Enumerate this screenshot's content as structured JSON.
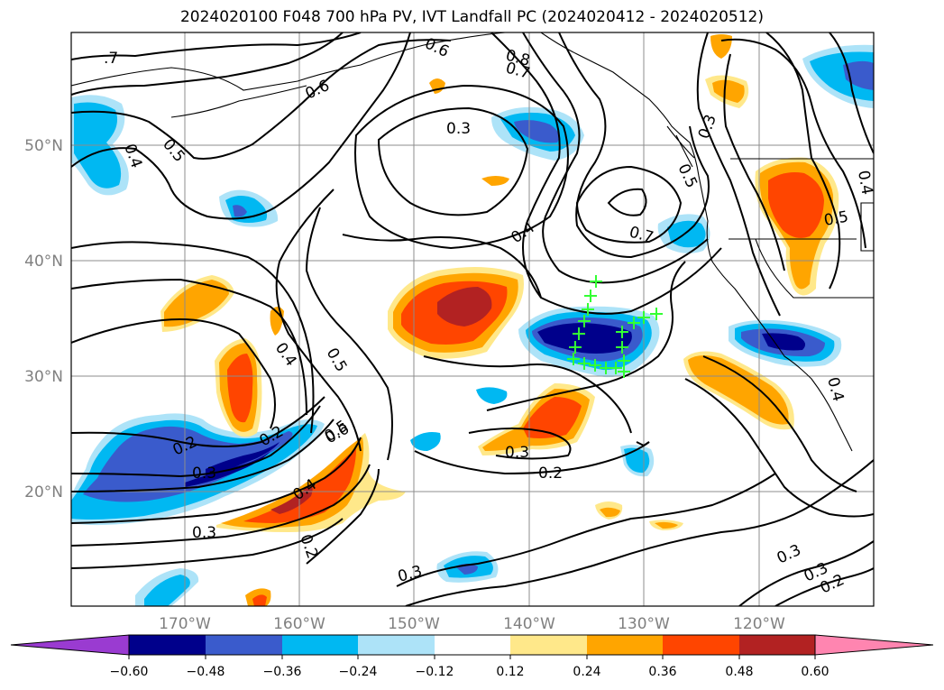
{
  "title": "2024020100 F048 700 hPa PV, IVT Landfall PC (2024020412 - 2024020512)",
  "lon_labels": [
    "170°W",
    "160°W",
    "150°W",
    "140°W",
    "130°W",
    "120°W"
  ],
  "lat_labels": [
    "50°N",
    "40°N",
    "30°N",
    "20°N"
  ],
  "colorbar": {
    "ticks": [
      "−0.60",
      "−0.48",
      "−0.36",
      "−0.24",
      "−0.12",
      "0.12",
      "0.24",
      "0.36",
      "0.48",
      "0.60"
    ],
    "colors": [
      "#9a3bd1",
      "#00008b",
      "#3a5bcc",
      "#00b8f2",
      "#ade3f8",
      "#ffffff",
      "#ffe88a",
      "#ffa500",
      "#ff4500",
      "#b22222",
      "#ff85b0"
    ]
  },
  "contour_labels": [
    ".7",
    "0.6",
    "0.8",
    "0.7",
    "0.6",
    "0.5",
    "0.4",
    "0.3",
    "0.3",
    "0.4",
    "0.5",
    "0.7",
    "0.5",
    "0.4",
    "0.5",
    "0.4",
    "0.5",
    "0.2",
    "0.2",
    "0.3",
    "0.6",
    "0.4",
    "0.2",
    "0.3",
    "0.3",
    "0.2",
    "0.3",
    "0.3",
    "0.3",
    "0.2",
    "0.4"
  ],
  "crosses_color": "#33ff33"
}
